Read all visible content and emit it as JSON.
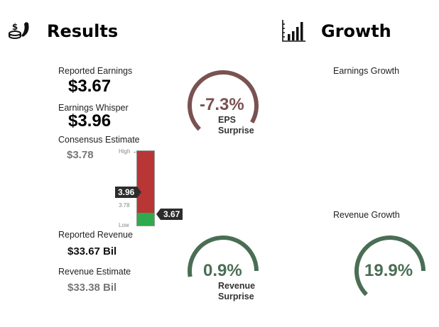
{
  "results": {
    "title": "Results",
    "icon": "money-bag-icon"
  },
  "growth": {
    "title": "Growth",
    "icon": "bar-chart-icon",
    "earnings_growth_label": "Earnings Growth",
    "revenue_growth_label": "Revenue Growth",
    "revenue_growth_value": "19.9%",
    "revenue_growth_pct": 19.9
  },
  "earnings": {
    "reported_label": "Reported Earnings",
    "reported_value": "$3.67",
    "whisper_label": "Earnings Whisper",
    "whisper_value": "$3.96",
    "consensus_label": "Consensus Estimate",
    "consensus_value": "$3.78"
  },
  "range": {
    "high_label": "High",
    "low_label": "Low",
    "consensus_tick": "3.78",
    "whisper_flag": "3.96",
    "reported_flag": "3.67",
    "reported_fraction": 0.17
  },
  "eps_surprise": {
    "value": "-7.3%",
    "caption_line1": "EPS",
    "caption_line2": "Surprise",
    "color": "#7a5252"
  },
  "revenue": {
    "reported_label": "Reported Revenue",
    "reported_value": "$33.67 Bil",
    "estimate_label": "Revenue Estimate",
    "estimate_value": "$33.38 Bil"
  },
  "revenue_surprise": {
    "value": "0.9%",
    "caption_line1": "Revenue",
    "caption_line2": "Surprise",
    "color": "#4a6e55"
  },
  "colors": {
    "bar_red": "#b93636",
    "bar_green": "#2faa4e",
    "flag_bg": "#2c2c2c",
    "growth_green": "#4a6e55"
  }
}
